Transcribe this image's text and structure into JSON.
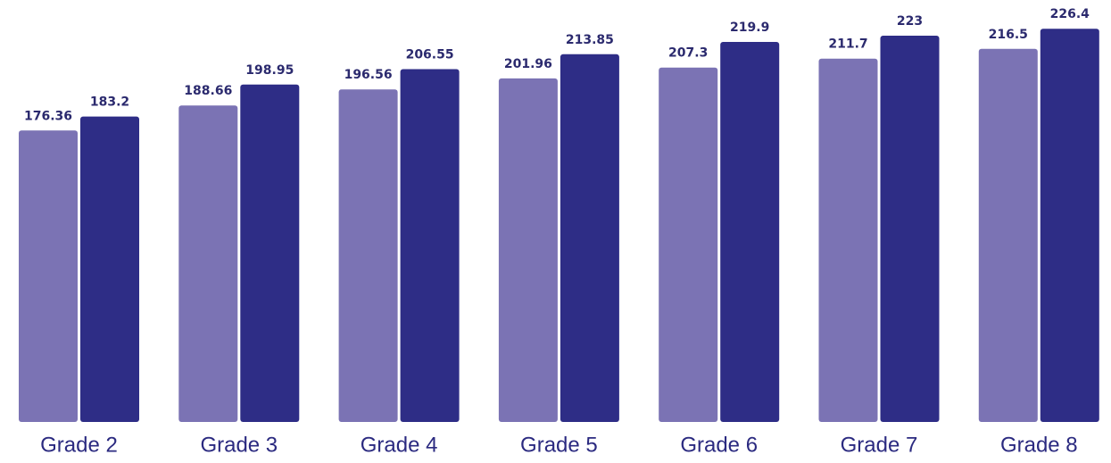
{
  "chart_data": {
    "type": "bar",
    "categories": [
      "Grade 2",
      "Grade 3",
      "Grade 4",
      "Grade 5",
      "Grade 6",
      "Grade 7",
      "Grade 8"
    ],
    "series": [
      {
        "color": "#7b73b4",
        "values": [
          176.36,
          188.66,
          196.56,
          201.96,
          207.3,
          211.7,
          216.5
        ]
      },
      {
        "color": "#2e2d86",
        "values": [
          183.2,
          198.95,
          206.55,
          213.85,
          219.9,
          223,
          226.4
        ]
      }
    ],
    "ylim": [
      33,
      230
    ]
  }
}
